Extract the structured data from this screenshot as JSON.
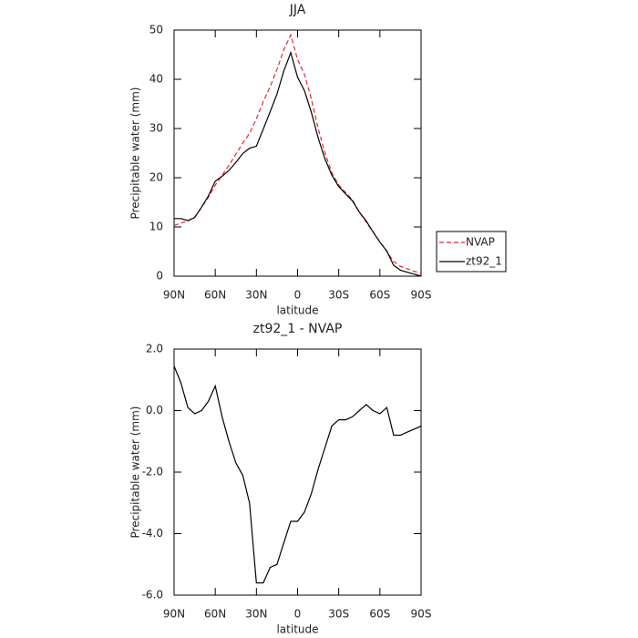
{
  "chart_data": [
    {
      "type": "line",
      "title": "JJA",
      "xlabel": "latitude",
      "ylabel": "Precipitable water (mm)",
      "x": [
        90,
        85,
        80,
        75,
        70,
        65,
        60,
        55,
        50,
        45,
        40,
        35,
        30,
        25,
        20,
        15,
        10,
        5,
        0,
        -5,
        -10,
        -15,
        -20,
        -25,
        -30,
        -35,
        -40,
        -45,
        -50,
        -55,
        -60,
        -65,
        -70,
        -75,
        -80,
        -85,
        -90
      ],
      "xlim": [
        90,
        -90
      ],
      "xticks": [
        {
          "value": 90,
          "label": "90N"
        },
        {
          "value": 60,
          "label": "60N"
        },
        {
          "value": 30,
          "label": "30N"
        },
        0,
        {
          "value": -30,
          "label": "30S"
        },
        {
          "value": -60,
          "label": "60S"
        },
        {
          "value": -90,
          "label": "90S"
        }
      ],
      "ylim": [
        0,
        50
      ],
      "yticks": [
        0,
        10,
        20,
        30,
        40,
        50
      ],
      "legend": "right",
      "series": [
        {
          "name": "NVAP",
          "color": "#e8262b",
          "dash": true,
          "values": [
            10.3,
            10.8,
            11.2,
            12,
            14,
            16,
            18.5,
            20.5,
            22.5,
            24.8,
            27,
            29,
            32,
            35.5,
            38.5,
            42,
            46,
            49,
            44,
            41,
            36,
            30,
            25,
            21,
            18.5,
            17,
            15.5,
            13,
            11,
            9,
            7,
            5,
            3,
            2,
            1.5,
            1,
            0.5
          ]
        },
        {
          "name": "zt92_1",
          "color": "#000000",
          "dash": false,
          "values": [
            11.7,
            11.7,
            11.3,
            11.9,
            14,
            16.3,
            19.3,
            20.3,
            21.5,
            23.1,
            24.9,
            26,
            26.4,
            29.9,
            33.4,
            37,
            41.7,
            45.4,
            40.4,
            37.7,
            33.3,
            28.1,
            23.8,
            20.5,
            18.2,
            16.7,
            15.3,
            13,
            11.2,
            9,
            6.9,
            5.1,
            2.2,
            1.2,
            0.8,
            0.4,
            0
          ]
        }
      ]
    },
    {
      "type": "line",
      "title": "zt92_1 - NVAP",
      "xlabel": "latitude",
      "ylabel": "Precipitable water (mm)",
      "x": [
        90,
        85,
        80,
        75,
        70,
        65,
        60,
        55,
        50,
        45,
        40,
        35,
        30,
        25,
        20,
        15,
        10,
        5,
        0,
        -5,
        -10,
        -15,
        -20,
        -25,
        -30,
        -35,
        -40,
        -45,
        -50,
        -55,
        -60,
        -65,
        -70,
        -75,
        -80,
        -85,
        -90
      ],
      "xlim": [
        90,
        -90
      ],
      "xticks": [
        {
          "value": 90,
          "label": "90N"
        },
        {
          "value": 60,
          "label": "60N"
        },
        {
          "value": 30,
          "label": "30N"
        },
        0,
        {
          "value": -30,
          "label": "30S"
        },
        {
          "value": -60,
          "label": "60S"
        },
        {
          "value": -90,
          "label": "90S"
        }
      ],
      "ylim": [
        -6,
        2
      ],
      "yticks": [
        {
          "value": -6,
          "label": "-6.0"
        },
        {
          "value": -4,
          "label": "-4.0"
        },
        {
          "value": -2,
          "label": "-2.0"
        },
        {
          "value": 0,
          "label": "0.0"
        },
        {
          "value": 2,
          "label": "2.0"
        }
      ],
      "series": [
        {
          "color": "#000000",
          "dash": false,
          "values": [
            1.45,
            0.9,
            0.1,
            -0.1,
            0,
            0.3,
            0.8,
            -0.2,
            -1.0,
            -1.7,
            -2.1,
            -3.0,
            -5.6,
            -5.6,
            -5.1,
            -5.0,
            -4.3,
            -3.6,
            -3.6,
            -3.3,
            -2.7,
            -1.9,
            -1.2,
            -0.5,
            -0.3,
            -0.3,
            -0.2,
            0,
            0.2,
            0,
            -0.1,
            0.1,
            -0.8,
            -0.8,
            -0.7,
            -0.6,
            -0.5
          ]
        }
      ]
    }
  ]
}
